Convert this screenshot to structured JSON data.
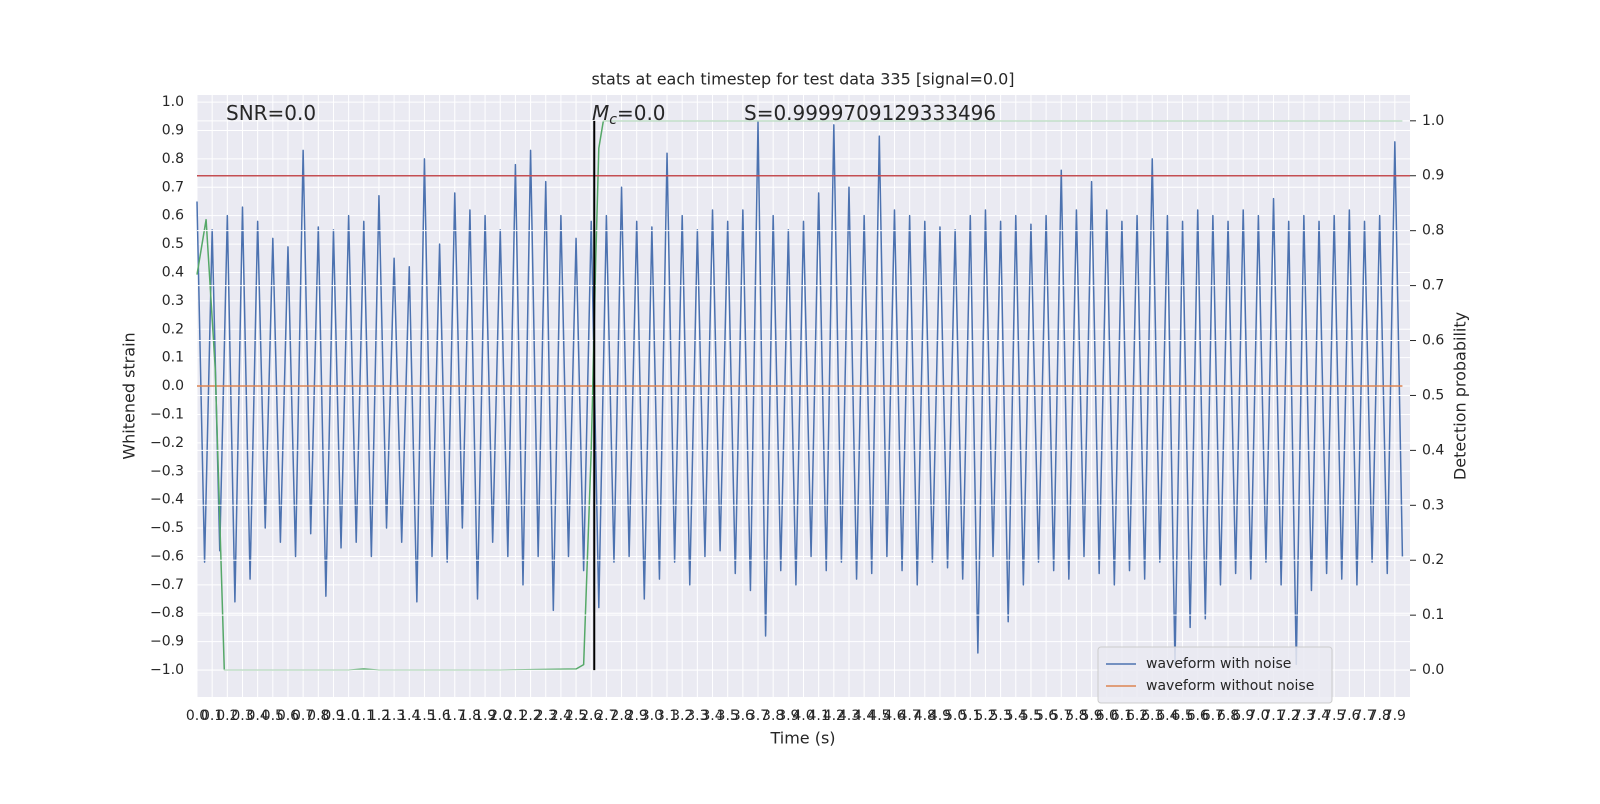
{
  "chart_data": {
    "type": "line",
    "title": "stats at each timestep for test data 335 [signal=0.0]",
    "xlabel": "Time (s)",
    "ylabel": "Whitened strain",
    "y2label": "Detection probability",
    "annotations": [
      {
        "text": "SNR=0.0"
      },
      {
        "symbol": "M",
        "subscript": "c",
        "text": "=0.0"
      },
      {
        "text": "S=0.9999709129333496"
      }
    ],
    "xlim": [
      0,
      8.0
    ],
    "ylim": [
      -1.095,
      1.025
    ],
    "y2lim": [
      -0.049,
      1.047
    ],
    "xticks": [
      {
        "value": 0,
        "label": "0.0"
      },
      0.1,
      0.2,
      0.3,
      0.4,
      0.5,
      0.6,
      0.7,
      0.8,
      0.9,
      {
        "value": 1,
        "label": "1.0"
      },
      1.1,
      1.2,
      1.3,
      1.4,
      1.5,
      1.6,
      1.7,
      1.8,
      1.9,
      {
        "value": 2,
        "label": "2.0"
      },
      2.1,
      2.2,
      2.3,
      2.4,
      2.5,
      2.6,
      2.7,
      2.8,
      2.9,
      {
        "value": 3,
        "label": "3.0"
      },
      3.1,
      3.2,
      3.3,
      3.4,
      3.5,
      3.6,
      3.7,
      3.8,
      3.9,
      {
        "value": 4,
        "label": "4.0"
      },
      4.1,
      4.2,
      4.3,
      4.4,
      4.5,
      4.6,
      4.7,
      4.8,
      4.9,
      {
        "value": 5,
        "label": "5.0"
      },
      5.1,
      5.2,
      5.3,
      5.4,
      5.5,
      5.6,
      5.7,
      5.8,
      5.9,
      {
        "value": 6,
        "label": "6.0"
      },
      6.1,
      6.2,
      6.3,
      6.4,
      6.5,
      6.6,
      6.7,
      6.8,
      6.9,
      {
        "value": 7,
        "label": "7.0"
      },
      7.1,
      7.2,
      7.3,
      7.4,
      7.5,
      7.6,
      7.7,
      7.8,
      7.9
    ],
    "yticks": [
      {
        "value": 1,
        "label": "1.0"
      },
      0.9,
      0.8,
      0.7,
      0.6,
      0.5,
      0.4,
      0.3,
      0.2,
      0.1,
      {
        "value": 0,
        "label": "0.0"
      },
      {
        "value": -0.1,
        "label": "−0.1"
      },
      {
        "value": -0.2,
        "label": "−0.2"
      },
      {
        "value": -0.3,
        "label": "−0.3"
      },
      {
        "value": -0.4,
        "label": "−0.4"
      },
      {
        "value": -0.5,
        "label": "−0.5"
      },
      {
        "value": -0.6,
        "label": "−0.6"
      },
      {
        "value": -0.7,
        "label": "−0.7"
      },
      {
        "value": -0.8,
        "label": "−0.8"
      },
      {
        "value": -0.9,
        "label": "−0.9"
      },
      {
        "value": -1,
        "label": "−1.0"
      }
    ],
    "y2ticks": [
      {
        "value": 0,
        "label": "0.0"
      },
      0.1,
      0.2,
      0.3,
      0.4,
      0.5,
      0.6,
      0.7,
      0.8,
      0.9,
      {
        "value": 1,
        "label": "1.0"
      }
    ],
    "grid": true,
    "legend": "lower right",
    "threshold": {
      "value": 0.9,
      "axis": "y2",
      "color": "#c44e52"
    },
    "marker_x": 2.62,
    "series": [
      {
        "name": "waveform with noise",
        "color": "#4c72b0",
        "x": [
          0,
          0.05,
          0.1,
          0.15,
          0.2,
          0.25,
          0.3,
          0.35,
          0.4,
          0.45,
          0.5,
          0.55,
          0.6,
          0.65,
          0.7,
          0.75,
          0.8,
          0.85,
          0.9,
          0.95,
          1,
          1.05,
          1.1,
          1.15,
          1.2,
          1.25,
          1.3,
          1.35,
          1.4,
          1.45,
          1.5,
          1.55,
          1.6,
          1.65,
          1.7,
          1.75,
          1.8,
          1.85,
          1.9,
          1.95,
          2,
          2.05,
          2.1,
          2.15,
          2.2,
          2.25,
          2.3,
          2.35,
          2.4,
          2.45,
          2.5,
          2.55,
          2.6,
          2.65,
          2.7,
          2.75,
          2.8,
          2.85,
          2.9,
          2.95,
          3,
          3.05,
          3.1,
          3.15,
          3.2,
          3.25,
          3.3,
          3.35,
          3.4,
          3.45,
          3.5,
          3.55,
          3.6,
          3.65,
          3.7,
          3.75,
          3.8,
          3.85,
          3.9,
          3.95,
          4,
          4.05,
          4.1,
          4.15,
          4.2,
          4.25,
          4.3,
          4.35,
          4.4,
          4.45,
          4.5,
          4.55,
          4.6,
          4.65,
          4.7,
          4.75,
          4.8,
          4.85,
          4.9,
          4.95,
          5,
          5.05,
          5.1,
          5.15,
          5.2,
          5.25,
          5.3,
          5.35,
          5.4,
          5.45,
          5.5,
          5.55,
          5.6,
          5.65,
          5.7,
          5.75,
          5.8,
          5.85,
          5.9,
          5.95,
          6,
          6.05,
          6.1,
          6.15,
          6.2,
          6.25,
          6.3,
          6.35,
          6.4,
          6.45,
          6.5,
          6.55,
          6.6,
          6.65,
          6.7,
          6.75,
          6.8,
          6.85,
          6.9,
          6.95,
          7,
          7.05,
          7.1,
          7.15,
          7.2,
          7.25,
          7.3,
          7.35,
          7.4,
          7.45,
          7.5,
          7.55,
          7.6,
          7.65,
          7.7,
          7.75,
          7.8,
          7.85,
          7.9,
          7.95
        ],
        "values": [
          0.65,
          -0.62,
          0.55,
          -0.58,
          0.6,
          -0.76,
          0.63,
          -0.68,
          0.58,
          -0.5,
          0.52,
          -0.55,
          0.49,
          -0.6,
          0.83,
          -0.52,
          0.56,
          -0.74,
          0.55,
          -0.57,
          0.6,
          -0.55,
          0.58,
          -0.6,
          0.67,
          -0.5,
          0.45,
          -0.55,
          0.42,
          -0.76,
          0.8,
          -0.6,
          0.5,
          -0.62,
          0.68,
          -0.5,
          0.62,
          -0.75,
          0.6,
          -0.55,
          0.55,
          -0.6,
          0.78,
          -0.7,
          0.83,
          -0.6,
          0.72,
          -0.79,
          0.6,
          -0.6,
          0.52,
          -0.65,
          0.58,
          -0.78,
          0.6,
          -0.62,
          0.7,
          -0.6,
          0.58,
          -0.75,
          0.56,
          -0.68,
          0.82,
          -0.62,
          0.6,
          -0.7,
          0.55,
          -0.6,
          0.62,
          -0.58,
          0.58,
          -0.66,
          0.62,
          -0.72,
          0.93,
          -0.88,
          0.6,
          -0.65,
          0.55,
          -0.7,
          0.58,
          -0.6,
          0.68,
          -0.65,
          0.92,
          -0.62,
          0.7,
          -0.68,
          0.6,
          -0.66,
          0.88,
          -0.6,
          0.62,
          -0.65,
          0.6,
          -0.7,
          0.58,
          -0.62,
          0.56,
          -0.64,
          0.55,
          -0.68,
          0.6,
          -0.94,
          0.62,
          -0.6,
          0.58,
          -0.83,
          0.6,
          -0.7,
          0.57,
          -0.62,
          0.6,
          -0.65,
          0.76,
          -0.68,
          0.62,
          -0.6,
          0.72,
          -0.66,
          0.62,
          -0.7,
          0.58,
          -0.65,
          0.6,
          -0.68,
          0.8,
          -0.62,
          0.6,
          -0.98,
          0.58,
          -0.85,
          0.62,
          -0.82,
          0.6,
          -0.7,
          0.58,
          -0.66,
          0.62,
          -0.68,
          0.6,
          -0.62,
          0.66,
          -0.7,
          0.58,
          -0.98,
          0.6,
          -0.72,
          0.58,
          -0.66,
          0.6,
          -0.68,
          0.62,
          -0.7,
          0.58,
          -0.62,
          0.6,
          -0.66,
          0.86,
          -0.6
        ]
      },
      {
        "name": "waveform without noise",
        "color": "#dd8452",
        "x": [
          0,
          7.95
        ],
        "values": [
          0,
          0
        ]
      },
      {
        "color": "#55a868",
        "axis": "y2",
        "x": [
          0,
          0.06,
          0.12,
          0.18,
          0.25,
          0.5,
          1.0,
          1.1,
          1.2,
          1.5,
          2.0,
          2.5,
          2.55,
          2.6,
          2.63,
          2.65,
          2.68,
          2.7,
          3.0,
          7.95
        ],
        "values": [
          0.72,
          0.82,
          0.55,
          0.0,
          0,
          0,
          0,
          0.002,
          0,
          0,
          0,
          0.002,
          0.01,
          0.4,
          0.75,
          0.95,
          1.0,
          1.0,
          1.0,
          1.0
        ]
      }
    ]
  }
}
